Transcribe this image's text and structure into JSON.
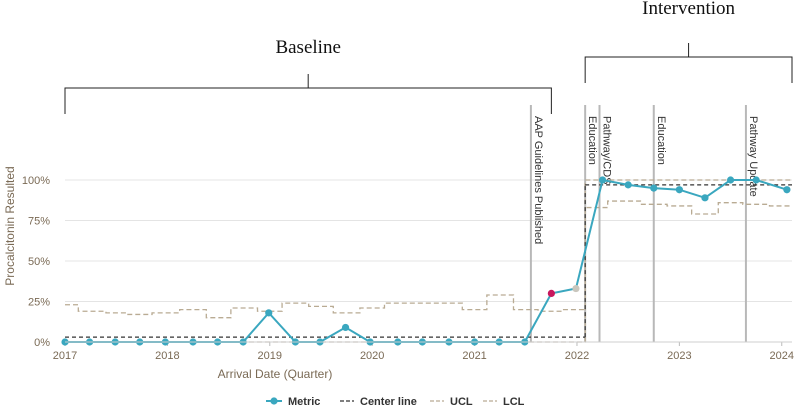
{
  "chart_data": {
    "type": "line",
    "title": "",
    "xlabel": "Arrival Date (Quarter)",
    "ylabel": "Procalcitonin Resulted",
    "x_ticks": [
      {
        "label": "2017",
        "value": 2017
      },
      {
        "label": "2018",
        "value": 2018
      },
      {
        "label": "2019",
        "value": 2019
      },
      {
        "label": "2020",
        "value": 2020
      },
      {
        "label": "2021",
        "value": 2021
      },
      {
        "label": "2022",
        "value": 2022
      },
      {
        "label": "2023",
        "value": 2023
      },
      {
        "label": "2024",
        "value": 2024
      }
    ],
    "y_ticks": [
      {
        "label": "0%",
        "value": 0
      },
      {
        "label": "25%",
        "value": 25
      },
      {
        "label": "50%",
        "value": 50
      },
      {
        "label": "75%",
        "value": 75
      },
      {
        "label": "100%",
        "value": 100
      }
    ],
    "xlim": [
      2017,
      2024.1
    ],
    "ylim": [
      0,
      100
    ],
    "metric": {
      "name": "Metric",
      "color": "#3aa7bf",
      "points": [
        {
          "x": 2017.0,
          "y": 0
        },
        {
          "x": 2017.24,
          "y": 0
        },
        {
          "x": 2017.49,
          "y": 0
        },
        {
          "x": 2017.73,
          "y": 0
        },
        {
          "x": 2017.98,
          "y": 0
        },
        {
          "x": 2018.25,
          "y": 0
        },
        {
          "x": 2018.49,
          "y": 0
        },
        {
          "x": 2018.74,
          "y": 0
        },
        {
          "x": 2018.99,
          "y": 18
        },
        {
          "x": 2019.25,
          "y": 0
        },
        {
          "x": 2019.49,
          "y": 0
        },
        {
          "x": 2019.74,
          "y": 9
        },
        {
          "x": 2019.98,
          "y": 0
        },
        {
          "x": 2020.25,
          "y": 0
        },
        {
          "x": 2020.49,
          "y": 0
        },
        {
          "x": 2020.75,
          "y": 0
        },
        {
          "x": 2021.0,
          "y": 0
        },
        {
          "x": 2021.24,
          "y": 0
        },
        {
          "x": 2021.49,
          "y": 0
        },
        {
          "x": 2021.75,
          "y": 30,
          "highlight": "special"
        },
        {
          "x": 2021.99,
          "y": 33,
          "highlight": "faded"
        },
        {
          "x": 2022.25,
          "y": 100
        },
        {
          "x": 2022.5,
          "y": 97
        },
        {
          "x": 2022.75,
          "y": 95
        },
        {
          "x": 2023.0,
          "y": 94
        },
        {
          "x": 2023.25,
          "y": 89
        },
        {
          "x": 2023.5,
          "y": 100
        },
        {
          "x": 2023.75,
          "y": 100
        },
        {
          "x": 2024.05,
          "y": 94
        }
      ]
    },
    "center_line": {
      "name": "Center line",
      "color": "#333333",
      "segments": [
        {
          "x": [
            2017.0,
            2022.08
          ],
          "y": 3
        },
        {
          "x": [
            2022.08,
            2024.1
          ],
          "y": 97
        }
      ]
    },
    "ucl": {
      "name": "UCL",
      "color": "#b9ab93",
      "steps": [
        {
          "x": [
            2017.0,
            2017.13
          ],
          "y": 23
        },
        {
          "x": [
            2017.13,
            2017.4
          ],
          "y": 19
        },
        {
          "x": [
            2017.4,
            2017.6
          ],
          "y": 18
        },
        {
          "x": [
            2017.6,
            2017.85
          ],
          "y": 17
        },
        {
          "x": [
            2017.85,
            2018.12
          ],
          "y": 18
        },
        {
          "x": [
            2018.12,
            2018.38
          ],
          "y": 20
        },
        {
          "x": [
            2018.38,
            2018.62
          ],
          "y": 15
        },
        {
          "x": [
            2018.62,
            2018.88
          ],
          "y": 21
        },
        {
          "x": [
            2018.88,
            2019.12
          ],
          "y": 19
        },
        {
          "x": [
            2019.12,
            2019.38
          ],
          "y": 24
        },
        {
          "x": [
            2019.38,
            2019.62
          ],
          "y": 22
        },
        {
          "x": [
            2019.62,
            2019.88
          ],
          "y": 18
        },
        {
          "x": [
            2019.88,
            2020.12
          ],
          "y": 21
        },
        {
          "x": [
            2020.12,
            2020.38
          ],
          "y": 24
        },
        {
          "x": [
            2020.38,
            2020.62
          ],
          "y": 24
        },
        {
          "x": [
            2020.62,
            2020.88
          ],
          "y": 24
        },
        {
          "x": [
            2020.88,
            2021.12
          ],
          "y": 20
        },
        {
          "x": [
            2021.12,
            2021.38
          ],
          "y": 29
        },
        {
          "x": [
            2021.38,
            2021.62
          ],
          "y": 20
        },
        {
          "x": [
            2021.62,
            2021.85
          ],
          "y": 19
        },
        {
          "x": [
            2021.85,
            2022.08
          ],
          "y": 20
        },
        {
          "x": [
            2022.08,
            2024.1
          ],
          "y": 100
        }
      ]
    },
    "lcl": {
      "name": "LCL",
      "color": "#b9ab93",
      "steps": [
        {
          "x": [
            2017.0,
            2022.08
          ],
          "y": 0
        },
        {
          "x": [
            2022.08,
            2022.3
          ],
          "y": 83
        },
        {
          "x": [
            2022.3,
            2022.62
          ],
          "y": 87
        },
        {
          "x": [
            2022.62,
            2022.88
          ],
          "y": 85
        },
        {
          "x": [
            2022.88,
            2023.12
          ],
          "y": 84
        },
        {
          "x": [
            2023.12,
            2023.38
          ],
          "y": 79
        },
        {
          "x": [
            2023.38,
            2023.62
          ],
          "y": 86
        },
        {
          "x": [
            2023.62,
            2023.88
          ],
          "y": 85
        },
        {
          "x": [
            2023.88,
            2024.1
          ],
          "y": 84
        }
      ]
    },
    "annotations": [
      {
        "label": "AAP Guidelines Published",
        "x": 2021.55
      },
      {
        "label": "Education",
        "x": 2022.08
      },
      {
        "label": "Pathway/CDS",
        "x": 2022.22
      },
      {
        "label": "Education",
        "x": 2022.75
      },
      {
        "label": "Pathway Update",
        "x": 2023.65
      }
    ],
    "phases": [
      {
        "label": "Baseline",
        "x": [
          2017.0,
          2021.75
        ]
      },
      {
        "label": "Intervention",
        "x": [
          2022.08,
          2024.1
        ]
      }
    ],
    "legend": {
      "placement": "bottom-center",
      "items": [
        "Metric",
        "Center line",
        "UCL",
        "LCL"
      ]
    }
  }
}
